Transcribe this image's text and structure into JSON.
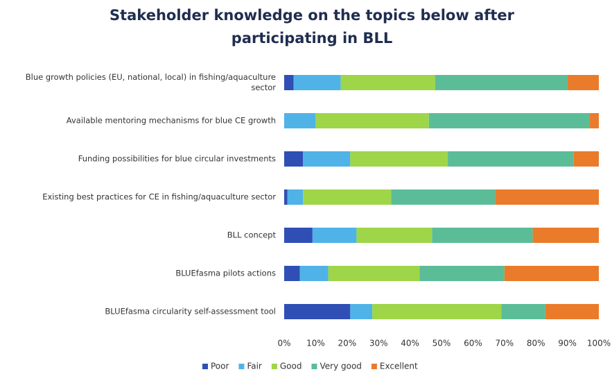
{
  "chart_data": {
    "type": "stacked-barh",
    "title": "Stakeholder knowledge on the topics below after participating in BLL",
    "categories": [
      "Blue growth policies (EU, national, local) in fishing/aquaculture sector",
      "Available mentoring mechanisms for blue CE growth",
      "Funding possibilities for blue circular investments",
      "Existing best practices for CE in fishing/aquaculture sector",
      "BLL concept",
      "BLUEfasma pilots actions",
      "BLUEfasma circularity self-assessment tool"
    ],
    "series": [
      {
        "name": "Poor",
        "color": "#2f4fb5",
        "values": [
          3,
          0,
          6,
          1,
          9,
          5,
          21
        ]
      },
      {
        "name": "Fair",
        "color": "#4fb3e8",
        "values": [
          15,
          10,
          15,
          5,
          14,
          9,
          7
        ]
      },
      {
        "name": "Good",
        "color": "#9fd548",
        "values": [
          30,
          36,
          31,
          28,
          24,
          29,
          41
        ]
      },
      {
        "name": "Very good",
        "color": "#5bbd98",
        "values": [
          42,
          51,
          40,
          33,
          32,
          27,
          14
        ]
      },
      {
        "name": "Excellent",
        "color": "#ea7b2b",
        "values": [
          10,
          3,
          8,
          33,
          21,
          30,
          17
        ]
      }
    ],
    "xlim": [
      0,
      100
    ],
    "xticks": [
      {
        "value": 0,
        "label": "0%"
      },
      {
        "value": 10,
        "label": "10%"
      },
      {
        "value": 20,
        "label": "20%"
      },
      {
        "value": 30,
        "label": "30%"
      },
      {
        "value": 40,
        "label": "40%"
      },
      {
        "value": 50,
        "label": "50%"
      },
      {
        "value": 60,
        "label": "60%"
      },
      {
        "value": 70,
        "label": "70%"
      },
      {
        "value": 80,
        "label": "80%"
      },
      {
        "value": 90,
        "label": "90%"
      },
      {
        "value": 100,
        "label": "100%"
      }
    ],
    "legend": "bottom"
  }
}
